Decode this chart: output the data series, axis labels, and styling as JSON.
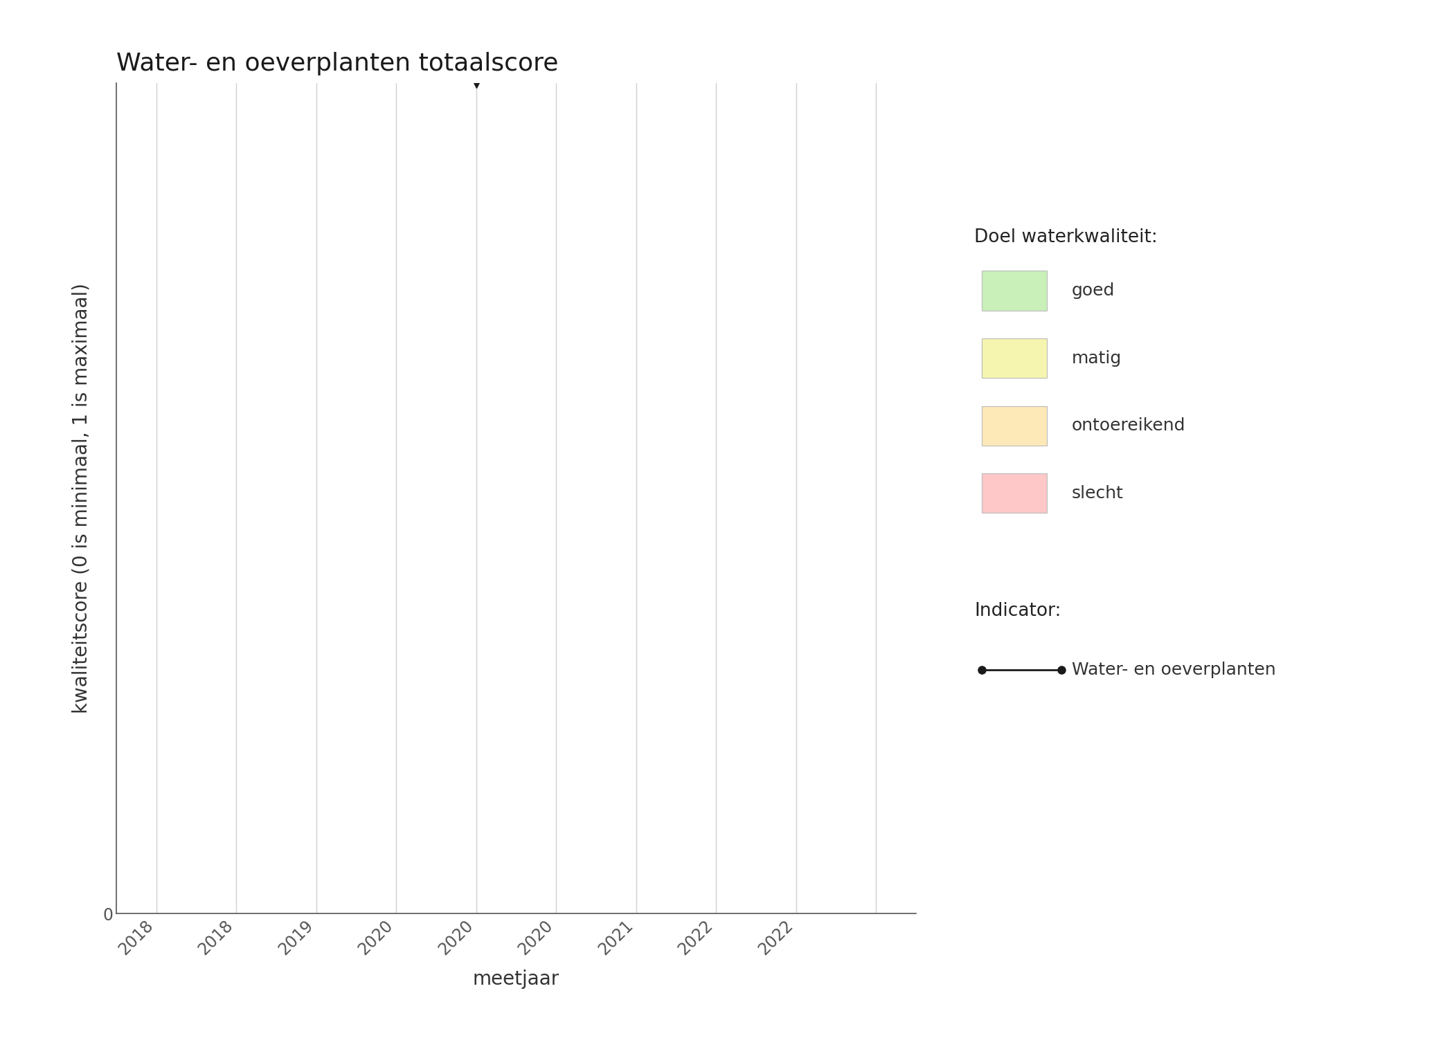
{
  "title": "Water- en oeverplanten totaalscore",
  "xlabel": "meetjaar",
  "ylabel": "kwaliteitscore (0 is minimaal, 1 is maximaal)",
  "ylim": [
    0,
    1
  ],
  "xlim": [
    2017.75,
    2022.75
  ],
  "data_x": [
    2020.0
  ],
  "data_y": [
    1.0
  ],
  "xtick_positions": [
    2018.0,
    2018.5,
    2019.0,
    2019.5,
    2020.0,
    2020.5,
    2021.0,
    2021.5,
    2022.0,
    2022.5
  ],
  "xtick_labels": [
    "2018",
    "2018",
    "2019",
    "2020",
    "2020",
    "2020",
    "2021",
    "2022",
    "2022",
    ""
  ],
  "background_color": "#ffffff",
  "grid_color": "#d0d0d0",
  "legend_title_doel": "Doel waterkwaliteit:",
  "legend_title_indicator": "Indicator:",
  "legend_colors": [
    "#c8f0b8",
    "#f5f5b0",
    "#fde8b8",
    "#ffc8c8"
  ],
  "legend_labels": [
    "goed",
    "matig",
    "ontoereikend",
    "slecht"
  ],
  "indicator_label": "Water- en oeverplanten",
  "line_color": "#1a1a1a",
  "marker_color": "#1a1a1a",
  "title_fontsize": 26,
  "label_fontsize": 20,
  "tick_fontsize": 17,
  "legend_fontsize": 18,
  "legend_title_fontsize": 19
}
